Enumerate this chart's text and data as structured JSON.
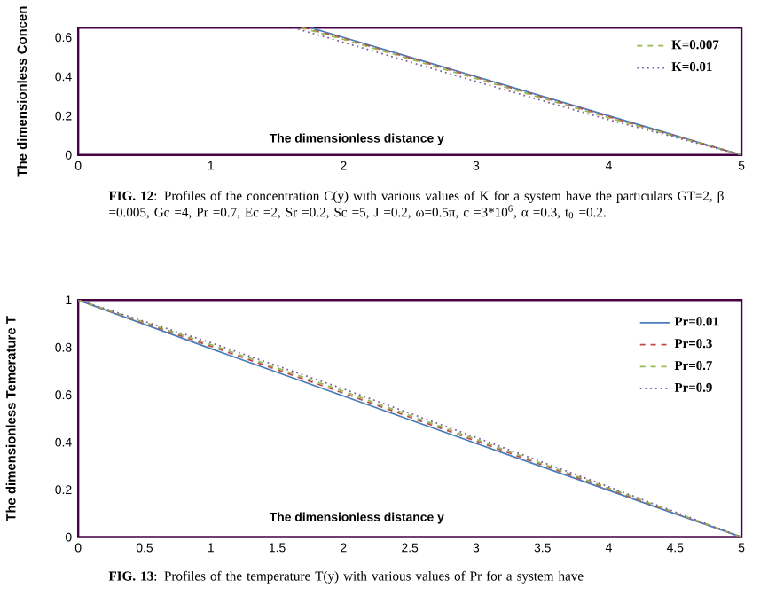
{
  "chart_data": [
    {
      "type": "line",
      "ylabel": "The dimensionless Concen",
      "xlabel": "The dimensionless distance y",
      "xlim": [
        0,
        5
      ],
      "ylim": [
        0,
        0.65
      ],
      "xticks": [
        0,
        1,
        2,
        3,
        4,
        5
      ],
      "yticks": [
        0,
        0.2,
        0.4,
        0.6
      ],
      "grid": false,
      "legend": "top right",
      "marker": "none",
      "annotations": [
        "**FIG. 12**: Profiles of the concentration C(y) with various values of K for a system have the particulars GT=2, β =0.005, Gc =4, Pr =0.7, Ec =2, Sr =0.2, Sc =5, J =0.2, ω=0.5π, c =3*10$^{6}$, α =0.3, t$_{0}$ =0.2."
      ],
      "series": [
        {
          "color": "#4a7ebb",
          "line_style": "solid",
          "x": [
            1.75,
            2,
            3,
            4,
            5
          ],
          "values": [
            0.65,
            0.6,
            0.4,
            0.2,
            0
          ]
        },
        {
          "color": "#be4b48",
          "line_style": "dashed",
          "x": [
            1.7,
            2,
            3,
            4,
            5
          ],
          "values": [
            0.65,
            0.595,
            0.395,
            0.195,
            0
          ]
        },
        {
          "name": "K=0.007",
          "color": "#98b954",
          "line_style": "dashed",
          "x": [
            1.68,
            2,
            3,
            4,
            5
          ],
          "values": [
            0.65,
            0.59,
            0.39,
            0.19,
            0
          ]
        },
        {
          "name": "K=0.01",
          "color": "#7d60a0",
          "line_style": "dotted",
          "x": [
            1.62,
            2,
            3,
            4,
            5
          ],
          "values": [
            0.65,
            0.575,
            0.375,
            0.18,
            0
          ]
        }
      ]
    },
    {
      "type": "line",
      "ylabel": "The dimensionless Temerature T",
      "xlabel": "The dimensionless distance y",
      "xlim": [
        0,
        5
      ],
      "ylim": [
        0,
        1
      ],
      "xticks": [
        0,
        0.5,
        1,
        1.5,
        2,
        2.5,
        3,
        3.5,
        4,
        4.5,
        5
      ],
      "yticks": [
        0,
        0.2,
        0.4,
        0.6,
        0.8,
        1
      ],
      "grid": false,
      "legend": "top right",
      "marker": "none",
      "annotations": [
        "**FIG. 13**: Profiles of the temperature T(y) with various values of Pr for a system have"
      ],
      "series": [
        {
          "name": "Pr=0.01",
          "color": "#4a7ebb",
          "line_style": "solid",
          "x": [
            0,
            1,
            2,
            3,
            4,
            5
          ],
          "values": [
            1,
            0.795,
            0.595,
            0.395,
            0.197,
            0
          ]
        },
        {
          "name": "Pr=0.3",
          "color": "#be4b48",
          "line_style": "dashed",
          "x": [
            0,
            1,
            2,
            3,
            4,
            5
          ],
          "values": [
            1,
            0.805,
            0.607,
            0.405,
            0.203,
            0
          ]
        },
        {
          "name": "Pr=0.7",
          "color": "#98b954",
          "line_style": "dashed",
          "x": [
            0,
            1,
            2,
            3,
            4,
            5
          ],
          "values": [
            1,
            0.812,
            0.615,
            0.412,
            0.207,
            0
          ]
        },
        {
          "name": "Pr=0.9",
          "color": "#7d60a0",
          "line_style": "dotted",
          "x": [
            0,
            1,
            2,
            3,
            4,
            5
          ],
          "values": [
            1,
            0.82,
            0.625,
            0.42,
            0.212,
            0
          ]
        }
      ]
    }
  ]
}
